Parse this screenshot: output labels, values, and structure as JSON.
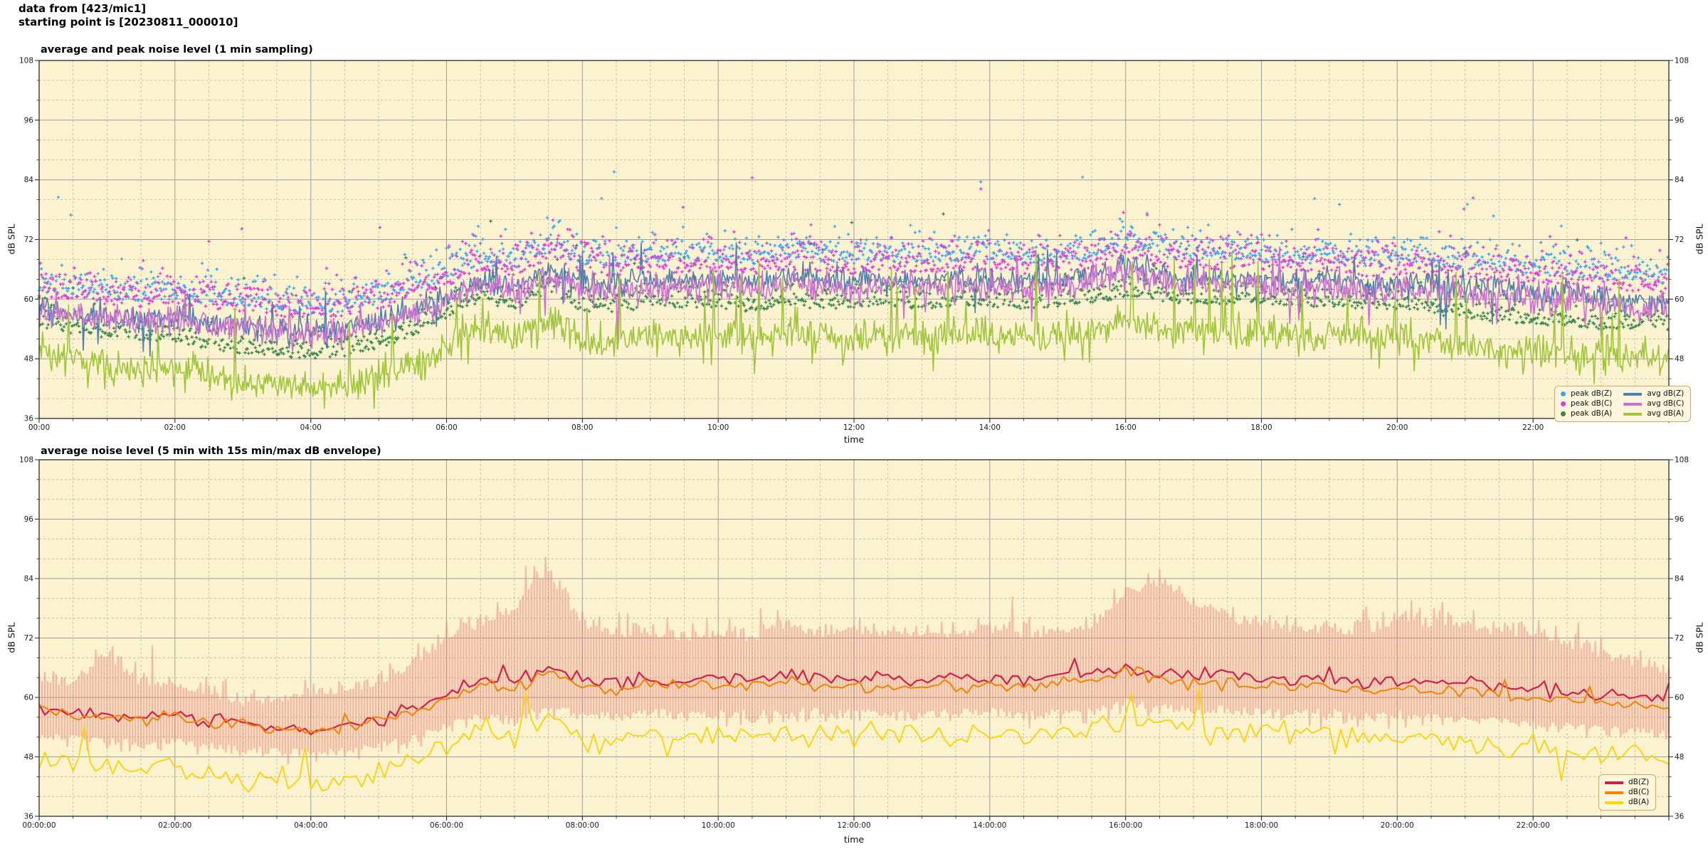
{
  "header": {
    "line1": "data from [423/mic1]",
    "line2": "starting point is [20230811_000010]"
  },
  "colors": {
    "figure_bg": "#ffffff",
    "plot_bg": "#fbf2cf",
    "grid_major": "#9e9e9e",
    "grid_minor": "#b9b5a8",
    "spine": "#2b2b2b",
    "text": "#1a1a1a",
    "peak_dbz": "#3da4f0",
    "peak_dbc": "#e637dd",
    "peak_dba": "#35854d",
    "avg_dbz": "#517fae",
    "avg_dbc": "#d06fd2",
    "avg_dba": "#9fc53a",
    "dbz": "#d2204c",
    "dbc": "#f18500",
    "dba": "#ffd300",
    "envelope_stroke": "rgba(226,118,112,0.38)",
    "envelope_fill": "rgba(238,150,140,0.17)",
    "legend_bg": "#fdf6dd",
    "legend_border": "#c7aa6e"
  },
  "seed": 20230811,
  "chart_data": [
    {
      "type": "line",
      "title": "average and peak noise level (1 min sampling)",
      "xlabel": "time",
      "ylabel_left": "dB SPL",
      "ylabel_right": "dB SPL",
      "x_range_hours": [
        0,
        24
      ],
      "ylim": [
        36,
        108
      ],
      "y_major_ticks": [
        36,
        48,
        60,
        72,
        84,
        96,
        108
      ],
      "y_minor_step": 4,
      "x_major_step_hours": 2,
      "x_minor_step_hours": 0.5,
      "x_major_tick_labels": [
        "00:00",
        "02:00",
        "04:00",
        "06:00",
        "08:00",
        "10:00",
        "12:00",
        "14:00",
        "16:00",
        "18:00",
        "20:00",
        "22:00"
      ],
      "grid": true,
      "legend_position": "lower right",
      "legend_columns": 2,
      "anchor_hours_step": 0.5,
      "legend": [
        {
          "label": "peak dB(Z)",
          "marker": "dot",
          "color": "#3da4f0"
        },
        {
          "label": "peak dB(C)",
          "marker": "dot",
          "color": "#e637dd"
        },
        {
          "label": "peak dB(A)",
          "marker": "dot",
          "color": "#35854d"
        },
        {
          "label": "avg dB(Z)",
          "marker": "line",
          "color": "#517fae"
        },
        {
          "label": "avg dB(C)",
          "marker": "line",
          "color": "#d06fd2"
        },
        {
          "label": "avg dB(A)",
          "marker": "line",
          "color": "#9fc53a"
        }
      ],
      "series": [
        {
          "name": "peak dB(Z)",
          "role": "scatter",
          "color": "#3da4f0",
          "base": "avg dB(Z)",
          "samples": 1440,
          "offset_base_db": 3.5,
          "offset_spread_db": 4.0,
          "outlier_prob": 0.02,
          "outlier_extra_db": 16
        },
        {
          "name": "peak dB(C)",
          "role": "scatter",
          "color": "#e637dd",
          "base": "avg dB(C)",
          "samples": 1440,
          "offset_base_db": 3.0,
          "offset_spread_db": 4.5,
          "outlier_prob": 0.02,
          "outlier_extra_db": 16
        },
        {
          "name": "peak dB(A)",
          "role": "scatter",
          "color": "#35854d",
          "base": "avg dB(A)",
          "samples": 1440,
          "offset_base_db": 5.5,
          "offset_spread_db": 3.5,
          "outlier_prob": 0.012,
          "outlier_extra_db": 18
        },
        {
          "name": "avg dB(Z)",
          "role": "line",
          "color": "#517fae",
          "samples": 1440,
          "jitter_db": 1.6,
          "spike_prob": 0.03,
          "spike_max_db": 7,
          "dip_prob": 0.025,
          "dip_max_db": 8,
          "anchors_db": [
            58,
            57,
            56.5,
            56,
            56.5,
            55.5,
            55,
            54,
            53.5,
            54,
            55.5,
            57.5,
            60.5,
            63.5,
            62.5,
            66,
            63.5,
            63,
            64,
            63.5,
            64,
            63.5,
            64.5,
            64,
            63.5,
            64,
            63.5,
            64,
            64,
            63.5,
            64,
            64.5,
            67,
            65,
            64.5,
            64.5,
            64,
            63.5,
            64,
            63,
            63.5,
            63,
            62.5,
            62,
            61.5,
            61,
            60.5,
            60,
            59.5
          ]
        },
        {
          "name": "avg dB(C)",
          "role": "line",
          "color": "#d06fd2",
          "samples": 1440,
          "jitter_db": 1.9,
          "spike_prob": 0.03,
          "spike_max_db": 6,
          "dip_prob": 0.025,
          "dip_max_db": 8,
          "anchors_db": [
            57.5,
            56.5,
            56,
            55.5,
            56,
            55,
            54.5,
            53.5,
            53,
            53.5,
            55,
            57,
            59.5,
            62.5,
            61.5,
            65,
            62,
            61.5,
            62.5,
            62,
            62.5,
            62,
            63,
            62.5,
            62,
            62.5,
            62,
            62.5,
            62.5,
            62,
            62.5,
            63,
            65.5,
            63.5,
            63,
            63,
            62.5,
            62,
            62.5,
            61.5,
            62,
            61.5,
            61,
            60.5,
            60,
            59.5,
            59,
            58.5,
            58
          ]
        },
        {
          "name": "avg dB(A)",
          "role": "line",
          "color": "#9fc53a",
          "samples": 1440,
          "jitter_db": 2.2,
          "spike_prob": 0.055,
          "spike_max_db": 15,
          "dip_prob": 0.05,
          "dip_max_db": 6,
          "anchors_db": [
            49,
            47.5,
            46.5,
            46,
            45.5,
            44.5,
            43.5,
            43,
            42.5,
            43,
            44.5,
            47,
            50.5,
            54,
            52,
            56,
            52,
            51.5,
            53,
            52.5,
            52.5,
            52,
            53,
            52.5,
            52.5,
            53,
            52.5,
            53,
            53,
            52.5,
            53,
            53.5,
            55,
            54,
            53.5,
            53.5,
            53.5,
            53,
            53,
            52.5,
            52.5,
            51.5,
            50.5,
            50,
            49.5,
            49,
            48.5,
            48.5,
            48
          ]
        }
      ]
    },
    {
      "type": "line",
      "title": "average noise level (5 min with 15s min/max dB envelope)",
      "xlabel": "time",
      "ylabel_left": "dB SPL",
      "ylabel_right": "dB SPL",
      "x_range_hours": [
        0,
        24
      ],
      "ylim": [
        36,
        108
      ],
      "y_major_ticks": [
        36,
        48,
        60,
        72,
        84,
        96,
        108
      ],
      "y_minor_step": 4,
      "x_major_step_hours": 2,
      "x_minor_step_hours": 0.5,
      "x_major_tick_labels": [
        "00:00:00",
        "02:00:00",
        "04:00:00",
        "06:00:00",
        "08:00:00",
        "10:00:00",
        "12:00:00",
        "14:00:00",
        "16:00:00",
        "18:00:00",
        "20:00:00",
        "22:00:00"
      ],
      "grid": true,
      "legend_position": "lower right",
      "legend_columns": 1,
      "anchor_hours_step": 0.5,
      "legend": [
        {
          "label": "dB(Z)",
          "marker": "line",
          "color": "#d2204c"
        },
        {
          "label": "dB(C)",
          "marker": "line",
          "color": "#f18500"
        },
        {
          "label": "dB(A)",
          "marker": "line",
          "color": "#ffd300"
        }
      ],
      "envelope": {
        "name": "15s min/max dB envelope",
        "color": "rgba(226,118,112,0.38)",
        "fill": "rgba(238,150,140,0.17)",
        "samples": 576,
        "jitter_up_db": 2.5,
        "jitter_down_db": 2.0,
        "max_anchors_db": [
          63,
          62,
          68,
          62,
          62,
          60,
          58,
          59,
          60,
          61,
          62,
          66,
          71,
          74,
          77,
          84,
          74,
          72,
          72,
          71,
          72,
          71,
          74,
          72,
          73,
          72,
          72,
          72,
          73,
          72,
          72,
          74,
          80,
          82,
          78,
          75,
          74,
          73,
          73,
          72,
          75,
          74,
          74,
          72,
          72,
          70,
          68,
          66,
          64
        ],
        "min_anchors_db": [
          53,
          52.5,
          52,
          51.5,
          52,
          51,
          50.5,
          50,
          49.5,
          50,
          51,
          52.5,
          55,
          57,
          56.5,
          59,
          57.5,
          57,
          58,
          57.5,
          58,
          57.5,
          58,
          58,
          57.5,
          58,
          57.5,
          58,
          58,
          57.5,
          58,
          58,
          60,
          59,
          58.5,
          58.5,
          58,
          57.5,
          58,
          57,
          57.5,
          57,
          56.5,
          56,
          55.5,
          55,
          54.5,
          54,
          53.5
        ]
      },
      "series": [
        {
          "name": "dB(Z)",
          "role": "line",
          "color": "#d2204c",
          "samples": 288,
          "jitter_db": 1.0,
          "spike_prob": 0.025,
          "spike_max_db": 5,
          "anchors_db": [
            58,
            57,
            56.5,
            56,
            56.5,
            55.5,
            55,
            54,
            53.5,
            54,
            55.5,
            57.5,
            60.5,
            63.5,
            62.5,
            66,
            63.5,
            63,
            64,
            63.5,
            64,
            63.5,
            64.5,
            64,
            63.5,
            64,
            63.5,
            64,
            64,
            63.5,
            64,
            64.5,
            67,
            65,
            64.5,
            64.5,
            64,
            63.5,
            64,
            63,
            63.5,
            63,
            62.5,
            62,
            61.5,
            61,
            60.5,
            60,
            59.5
          ]
        },
        {
          "name": "dB(C)",
          "role": "line",
          "color": "#f18500",
          "samples": 288,
          "jitter_db": 0.9,
          "spike_prob": 0.02,
          "spike_max_db": 4,
          "anchors_db": [
            57.5,
            56.5,
            56,
            55.5,
            56,
            55,
            54.5,
            53.5,
            53,
            53.5,
            55,
            57,
            59.5,
            62.5,
            61.5,
            65,
            62,
            61.5,
            62.5,
            62,
            62.5,
            62,
            63,
            62.5,
            62,
            62.5,
            62,
            62.5,
            62.5,
            62,
            62.5,
            63,
            65.5,
            63.5,
            63,
            63,
            62.5,
            62,
            62.5,
            61.5,
            62,
            61.5,
            61,
            60.5,
            60,
            59.5,
            59,
            58.5,
            58
          ]
        },
        {
          "name": "dB(A)",
          "role": "line",
          "color": "#ffd300",
          "samples": 288,
          "jitter_db": 1.7,
          "spike_prob": 0.04,
          "spike_max_db": 9,
          "dip_prob": 0.04,
          "dip_max_db": 5,
          "anchors_db": [
            49,
            47.5,
            46.5,
            46,
            45.5,
            44.5,
            43.5,
            43,
            42.5,
            43,
            44.5,
            47,
            50.5,
            54,
            52,
            56,
            52,
            51.5,
            53,
            52.5,
            52.5,
            52,
            53,
            52.5,
            52.5,
            53,
            52.5,
            53,
            53,
            52.5,
            53,
            53.5,
            55,
            54,
            53.5,
            53.5,
            53.5,
            53,
            53,
            52.5,
            52.5,
            51.5,
            50.5,
            50,
            49.5,
            49,
            48.5,
            48.5,
            48
          ]
        }
      ]
    }
  ]
}
